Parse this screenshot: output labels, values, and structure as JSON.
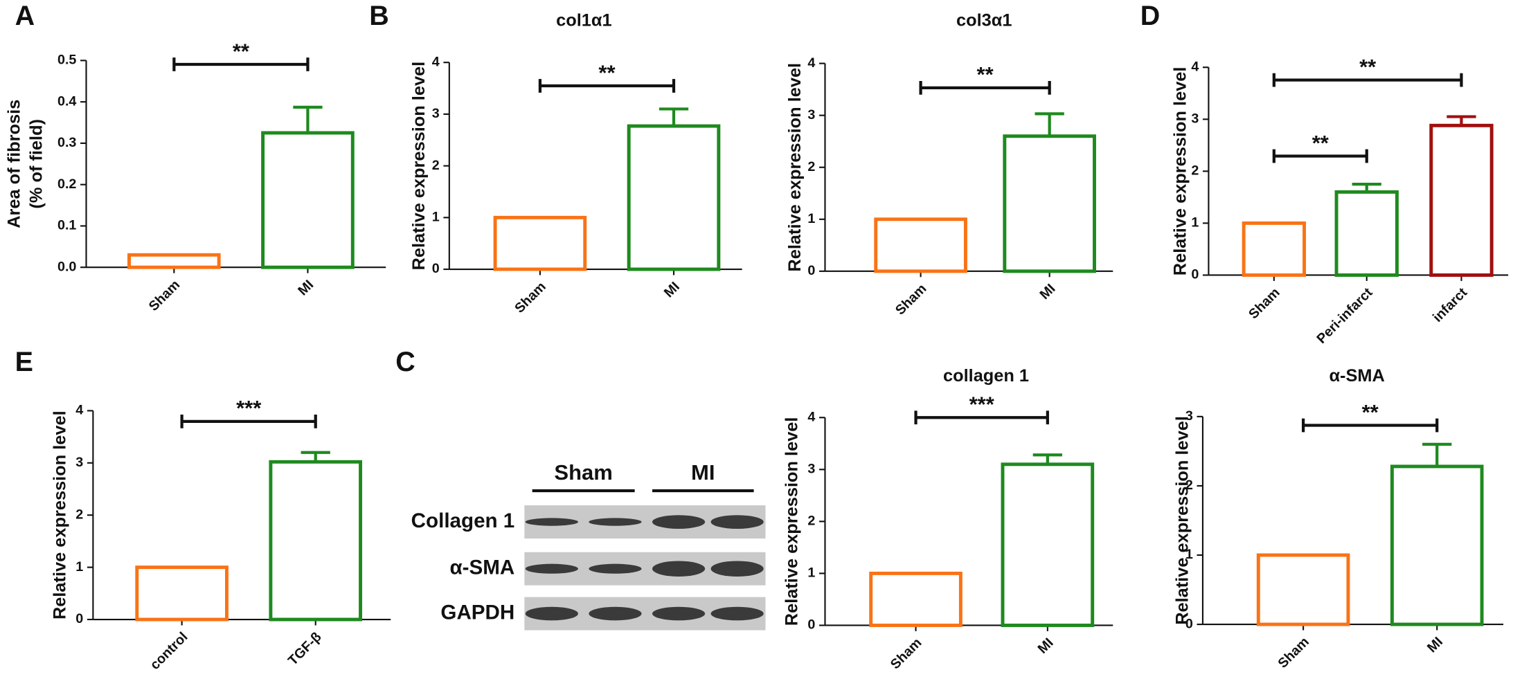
{
  "chart_data": [
    {
      "type": "bar",
      "panel": "A",
      "ylabel": [
        "Area of fibrosis",
        "(% of field)"
      ],
      "categories": [
        "Sham",
        "MI"
      ],
      "values": [
        0.03,
        0.325
      ],
      "errors": [
        null,
        0.062
      ],
      "colors": [
        "#f97316",
        "#1e8a1e"
      ],
      "ylim": [
        0,
        0.5
      ],
      "yticks": [
        {
          "value": 0,
          "label": "0.0"
        },
        0.1,
        0.2,
        0.3,
        0.4,
        0.5
      ],
      "annotations": [
        {
          "text": "**",
          "from": 0,
          "to": 1
        }
      ]
    },
    {
      "type": "bar",
      "panel": "B",
      "title": "col1α1",
      "ylabel": [
        "Relative expression level"
      ],
      "categories": [
        "Sham",
        "MI"
      ],
      "values": [
        1.0,
        2.77
      ],
      "errors": [
        null,
        0.33
      ],
      "colors": [
        "#f97316",
        "#1e8a1e"
      ],
      "ylim": [
        0,
        4
      ],
      "yticks": [
        0,
        1,
        2,
        3,
        4
      ],
      "annotations": [
        {
          "text": "**",
          "from": 0,
          "to": 1
        }
      ]
    },
    {
      "type": "bar",
      "title": "col3α1",
      "ylabel": [
        "Relative expression level"
      ],
      "categories": [
        "Sham",
        "MI"
      ],
      "values": [
        1.0,
        2.6
      ],
      "errors": [
        null,
        0.43
      ],
      "colors": [
        "#f97316",
        "#1e8a1e"
      ],
      "ylim": [
        0,
        4
      ],
      "yticks": [
        0,
        1,
        2,
        3,
        4
      ],
      "annotations": [
        {
          "text": "**",
          "from": 0,
          "to": 1
        }
      ]
    },
    {
      "type": "bar",
      "panel": "D",
      "ylabel": [
        "Relative expression level"
      ],
      "categories": [
        "Sham",
        "Peri-infarct",
        "infarct"
      ],
      "values": [
        1.0,
        1.6,
        2.88
      ],
      "errors": [
        null,
        0.15,
        0.17
      ],
      "colors": [
        "#f97316",
        "#1e8a1e",
        "#a01010"
      ],
      "ylim": [
        0,
        4
      ],
      "yticks": [
        0,
        1,
        2,
        3,
        4
      ],
      "annotations": [
        {
          "text": "**",
          "from": 0,
          "to": 2
        },
        {
          "text": "**",
          "from": 0,
          "to": 1
        }
      ]
    },
    {
      "type": "bar",
      "panel": "E",
      "ylabel": [
        "Relative expression level"
      ],
      "categories": [
        "control",
        "TGF-β"
      ],
      "values": [
        1.0,
        3.02
      ],
      "errors": [
        null,
        0.18
      ],
      "colors": [
        "#f97316",
        "#1e8a1e"
      ],
      "ylim": [
        0,
        4
      ],
      "yticks": [
        0,
        1,
        2,
        3,
        4
      ],
      "annotations": [
        {
          "text": "***",
          "from": 0,
          "to": 1
        }
      ]
    },
    {
      "type": "bar",
      "title": "collagen 1",
      "ylabel": [
        "Relative expression level"
      ],
      "categories": [
        "Sham",
        "MI"
      ],
      "values": [
        1.0,
        3.1
      ],
      "errors": [
        null,
        0.18
      ],
      "colors": [
        "#f97316",
        "#1e8a1e"
      ],
      "ylim": [
        0,
        4
      ],
      "yticks": [
        0,
        1,
        2,
        3,
        4
      ],
      "annotations": [
        {
          "text": "***",
          "from": 0,
          "to": 1
        }
      ]
    },
    {
      "type": "bar",
      "title": "α-SMA",
      "ylabel": [
        "Relative expression level"
      ],
      "categories": [
        "Sham",
        "MI"
      ],
      "values": [
        1.0,
        2.28
      ],
      "errors": [
        null,
        0.32
      ],
      "colors": [
        "#f97316",
        "#1e8a1e"
      ],
      "ylim": [
        0,
        3
      ],
      "yticks": [
        0,
        1,
        2,
        3
      ],
      "annotations": [
        {
          "text": "**",
          "from": 0,
          "to": 1
        }
      ]
    }
  ],
  "blot": {
    "panel": "C",
    "groups": [
      "Sham",
      "MI"
    ],
    "rows": [
      "Collagen 1",
      "α-SMA",
      "GAPDH"
    ]
  }
}
